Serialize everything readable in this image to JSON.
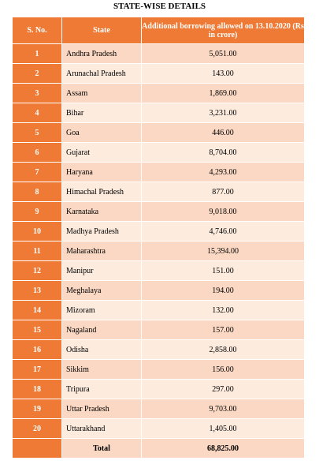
{
  "title": "STATE-WISE DETAILS",
  "colors": {
    "header": "#ee7a35",
    "row_dark": "#fbd8c3",
    "row_light": "#fdebde"
  },
  "columns": [
    "S. No.",
    "State",
    "Additional borrowing allowed on 13.10.2020 (Rs in crore)"
  ],
  "rows": [
    {
      "sno": "1",
      "state": "Andhra Pradesh",
      "value": "5,051.00"
    },
    {
      "sno": "2",
      "state": "Arunachal Pradesh",
      "value": "143.00"
    },
    {
      "sno": "3",
      "state": "Assam",
      "value": "1,869.00"
    },
    {
      "sno": "4",
      "state": "Bihar",
      "value": "3,231.00"
    },
    {
      "sno": "5",
      "state": "Goa",
      "value": "446.00"
    },
    {
      "sno": "6",
      "state": "Gujarat",
      "value": "8,704.00"
    },
    {
      "sno": "7",
      "state": "Haryana",
      "value": "4,293.00"
    },
    {
      "sno": "8",
      "state": "Himachal Pradesh",
      "value": "877.00"
    },
    {
      "sno": "9",
      "state": "Karnataka",
      "value": "9,018.00"
    },
    {
      "sno": "10",
      "state": "Madhya Pradesh",
      "value": "4,746.00"
    },
    {
      "sno": "11",
      "state": "Maharashtra",
      "value": "15,394.00"
    },
    {
      "sno": "12",
      "state": "Manipur",
      "value": "151.00"
    },
    {
      "sno": "13",
      "state": "Meghalaya",
      "value": "194.00"
    },
    {
      "sno": "14",
      "state": "Mizoram",
      "value": "132.00"
    },
    {
      "sno": "15",
      "state": "Nagaland",
      "value": "157.00"
    },
    {
      "sno": "16",
      "state": "Odisha",
      "value": "2,858.00"
    },
    {
      "sno": "17",
      "state": "Sikkim",
      "value": "156.00"
    },
    {
      "sno": "18",
      "state": "Tripura",
      "value": "297.00"
    },
    {
      "sno": "19",
      "state": "Uttar Pradesh",
      "value": "9,703.00"
    },
    {
      "sno": "20",
      "state": "Uttarakhand",
      "value": "1,405.00"
    }
  ],
  "total": {
    "label": "Total",
    "value": "68,825.00"
  }
}
